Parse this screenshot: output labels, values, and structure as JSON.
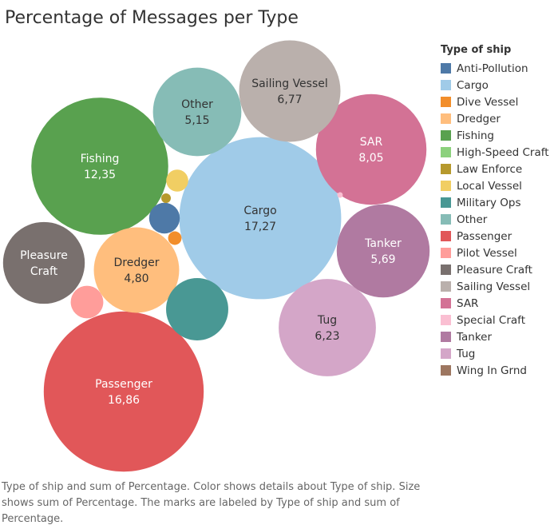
{
  "chart_data": {
    "type": "bubble",
    "title": "Percentage of Messages per Type",
    "legend_title": "Type of ship",
    "legend_placement": "right",
    "categories": [
      "Anti-Pollution",
      "Cargo",
      "Dive Vessel",
      "Dredger",
      "Fishing",
      "High-Speed Craft",
      "Law Enforce",
      "Local Vessel",
      "Military Ops",
      "Other",
      "Passenger",
      "Pilot Vessel",
      "Pleasure Craft",
      "Sailing Vessel",
      "SAR",
      "Special Craft",
      "Tanker",
      "Tug",
      "Wing In Grnd"
    ],
    "colors": [
      "#4e79a7",
      "#a0cbe8",
      "#f28e2b",
      "#ffbe7d",
      "#59a14f",
      "#8cd17d",
      "#b6992d",
      "#f1ce63",
      "#499894",
      "#86bcb6",
      "#e15759",
      "#ff9d9a",
      "#79706e",
      "#bab0ac",
      "#d37295",
      "#fabfd2",
      "#b07aa1",
      "#d4a6c8",
      "#9d7660"
    ],
    "bubbles": [
      {
        "category": "Cargo",
        "label": "Cargo",
        "value": 17.27,
        "value_label": "17,27",
        "text_color": "#333333"
      },
      {
        "category": "Passenger",
        "label": "Passenger",
        "value": 16.86,
        "value_label": "16,86",
        "text_color": "#ffffff"
      },
      {
        "category": "Fishing",
        "label": "Fishing",
        "value": 12.35,
        "value_label": "12,35",
        "text_color": "#ffffff"
      },
      {
        "category": "SAR",
        "label": "SAR",
        "value": 8.05,
        "value_label": "8,05",
        "text_color": "#ffffff"
      },
      {
        "category": "Sailing Vessel",
        "label": "Sailing Vessel",
        "value": 6.77,
        "value_label": "6,77",
        "text_color": "#333333"
      },
      {
        "category": "Tug",
        "label": "Tug",
        "value": 6.23,
        "value_label": "6,23",
        "text_color": "#333333"
      },
      {
        "category": "Tanker",
        "label": "Tanker",
        "value": 5.69,
        "value_label": "5,69",
        "text_color": "#ffffff"
      },
      {
        "category": "Other",
        "label": "Other",
        "value": 5.15,
        "value_label": "5,15",
        "text_color": "#333333"
      },
      {
        "category": "Dredger",
        "label": "Dredger",
        "value": 4.8,
        "value_label": "4,80",
        "text_color": "#333333"
      },
      {
        "category": "Pleasure Craft",
        "label": "Pleasure Craft",
        "value": 4.4,
        "value_label": "",
        "text_color": "#ffffff"
      },
      {
        "category": "Military Ops",
        "label": "",
        "value": 2.55,
        "value_label": "",
        "text_color": "#ffffff"
      },
      {
        "category": "Pilot Vessel",
        "label": "",
        "value": 0.7,
        "value_label": "",
        "text_color": "#333333"
      },
      {
        "category": "Anti-Pollution",
        "label": "",
        "value": 0.62,
        "value_label": "",
        "text_color": "#ffffff"
      },
      {
        "category": "Local Vessel",
        "label": "",
        "value": 0.32,
        "value_label": "",
        "text_color": "#333333"
      },
      {
        "category": "Dive Vessel",
        "label": "",
        "value": 0.12,
        "value_label": "",
        "text_color": "#333333"
      },
      {
        "category": "Law Enforce",
        "label": "",
        "value": 0.06,
        "value_label": "",
        "text_color": "#333333"
      },
      {
        "category": "Special Craft",
        "label": "",
        "value": 0.02,
        "value_label": "",
        "text_color": "#333333"
      }
    ]
  },
  "caption": "Type of ship and sum of Percentage.  Color shows details about Type of ship.  Size shows sum of Percentage.  The marks are labeled by Type of ship and sum of Percentage."
}
